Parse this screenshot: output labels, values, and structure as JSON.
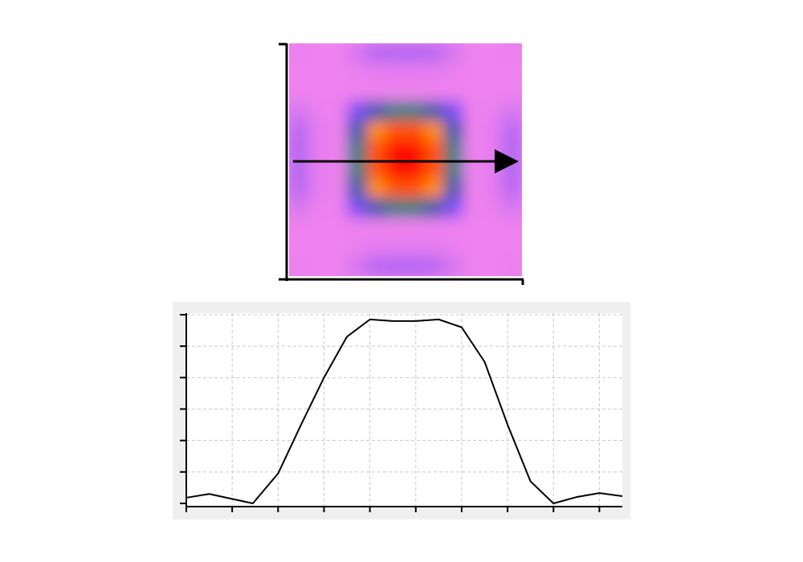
{
  "chart_data": [
    {
      "type": "heatmap",
      "zlim": [
        0,
        1
      ],
      "colormap": [
        "#ee82ee",
        "#9a5cf5",
        "#0010ff",
        "#00b050",
        "#ffff00",
        "#ff8000",
        "#ff1000"
      ],
      "z": [
        [
          0.01,
          0,
          0,
          0.05,
          0.11,
          0.12,
          0.12,
          0.11,
          0.05,
          0,
          0,
          0.01
        ],
        [
          0,
          0,
          0,
          0.01,
          0.02,
          0.02,
          0.02,
          0.02,
          0.01,
          0,
          0,
          0
        ],
        [
          0,
          0,
          0,
          0,
          0,
          0,
          0,
          0,
          0,
          0,
          0,
          0
        ],
        [
          0.05,
          0.01,
          0,
          0.2,
          0.41,
          0.45,
          0.45,
          0.41,
          0.2,
          0,
          0.01,
          0.05
        ],
        [
          0.11,
          0.02,
          0,
          0.41,
          0.81,
          0.9,
          0.9,
          0.81,
          0.41,
          0,
          0.02,
          0.11
        ],
        [
          0.12,
          0.02,
          0,
          0.45,
          0.9,
          1,
          1,
          0.9,
          0.45,
          0,
          0.02,
          0.12
        ],
        [
          0.12,
          0.02,
          0,
          0.45,
          0.9,
          1,
          1,
          0.9,
          0.45,
          0,
          0.02,
          0.12
        ],
        [
          0.11,
          0.02,
          0,
          0.41,
          0.81,
          0.9,
          0.9,
          0.81,
          0.41,
          0,
          0.02,
          0.11
        ],
        [
          0.05,
          0.01,
          0,
          0.2,
          0.41,
          0.45,
          0.45,
          0.41,
          0.2,
          0,
          0.01,
          0.05
        ],
        [
          0,
          0,
          0,
          0,
          0,
          0,
          0,
          0,
          0,
          0,
          0,
          0
        ],
        [
          0,
          0,
          0,
          0.01,
          0.02,
          0.02,
          0.02,
          0.02,
          0.01,
          0,
          0,
          0
        ],
        [
          0.01,
          0,
          0,
          0.05,
          0.11,
          0.12,
          0.12,
          0.11,
          0.05,
          0,
          0,
          0.01
        ]
      ]
    },
    {
      "type": "line",
      "x": [
        0,
        0.5,
        1.45,
        2,
        2.5,
        3,
        3.5,
        4,
        4.5,
        5,
        5.5,
        6,
        6.5,
        7,
        7.5,
        8,
        8.5,
        9,
        9.5
      ],
      "values": [
        0.18,
        0.3,
        0,
        0.95,
        2.5,
        4,
        5.3,
        5.85,
        5.8,
        5.8,
        5.85,
        5.6,
        4.5,
        2.5,
        0.7,
        0,
        0.2,
        0.33,
        0.23
      ],
      "color": "#000000",
      "xlim": [
        0,
        9.5
      ],
      "xticks": [
        0,
        1,
        2,
        3,
        4,
        5,
        6,
        7,
        8,
        9
      ],
      "ylim": [
        0,
        6
      ],
      "yticks": [
        0,
        1,
        2,
        3,
        4,
        5,
        6
      ],
      "grid": true
    }
  ]
}
